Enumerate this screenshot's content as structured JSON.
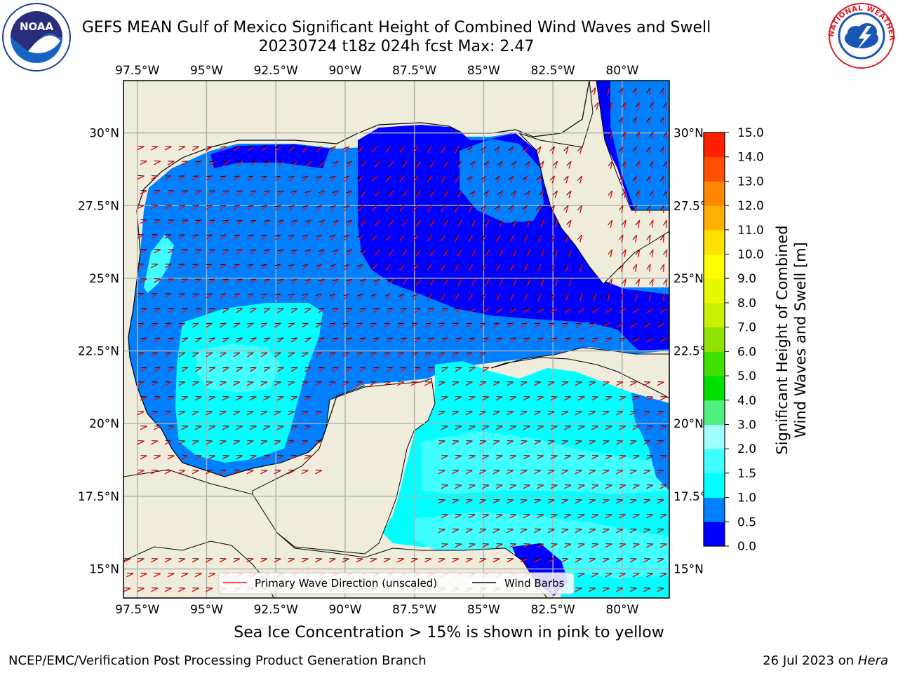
{
  "header": {
    "title_line1": "GEFS MEAN Gulf of Mexico Significant Height of Combined Wind Waves and Swell",
    "title_line2": "20230724 t18z 024h fcst   Max: 2.47"
  },
  "logos": {
    "left": {
      "icon": "noaa-logo-icon",
      "text": "NOAA"
    },
    "right": {
      "icon": "nws-logo-icon",
      "text": "NATIONAL WEATHER SERVICE"
    }
  },
  "map": {
    "lon_labels": [
      "97.5°W",
      "95°W",
      "92.5°W",
      "90°W",
      "87.5°W",
      "85°W",
      "82.5°W",
      "80°W"
    ],
    "lon_values": [
      -97.5,
      -95,
      -92.5,
      -90,
      -87.5,
      -85,
      -82.5,
      -80
    ],
    "lat_labels": [
      "30°N",
      "27.5°N",
      "25°N",
      "22.5°N",
      "20°N",
      "17.5°N",
      "15°N"
    ],
    "lat_values": [
      30,
      27.5,
      25,
      22.5,
      20,
      17.5,
      15
    ],
    "lon_range": [
      -98,
      -78.3
    ],
    "lat_range": [
      14,
      31.8
    ],
    "land_color": "#efecdc",
    "grid": true,
    "legend": {
      "placement": "bottom-center",
      "items": [
        {
          "label": "Primary Wave Direction (unscaled)",
          "color": "#ff0000"
        },
        {
          "label": "Wind Barbs",
          "color": "#000000"
        }
      ]
    }
  },
  "colorbar": {
    "label_line1": "Significant Height of Combined",
    "label_line2": "Wind Waves and Swell [m]",
    "levels": [
      "0.0",
      "0.5",
      "1.0",
      "1.5",
      "2.0",
      "3.0",
      "4.0",
      "5.0",
      "6.0",
      "7.0",
      "8.0",
      "9.0",
      "10.0",
      "11.0",
      "12.0",
      "13.0",
      "14.0",
      "15.0"
    ],
    "colors": [
      "#0000ff",
      "#0080ff",
      "#00ffff",
      "#40ffff",
      "#a0ffff",
      "#50f080",
      "#00e000",
      "#40e000",
      "#90e000",
      "#c8f000",
      "#e8f800",
      "#ffff00",
      "#ffe000",
      "#ffb000",
      "#ff8800",
      "#ff5000",
      "#ff2000"
    ]
  },
  "footer": {
    "note": "Sea Ice Concentration > 15% is shown in pink to yellow",
    "left": "NCEP/EMC/Verification Post Processing Product Generation Branch",
    "right_date": "26 Jul 2023 on ",
    "right_host": "Hera"
  }
}
